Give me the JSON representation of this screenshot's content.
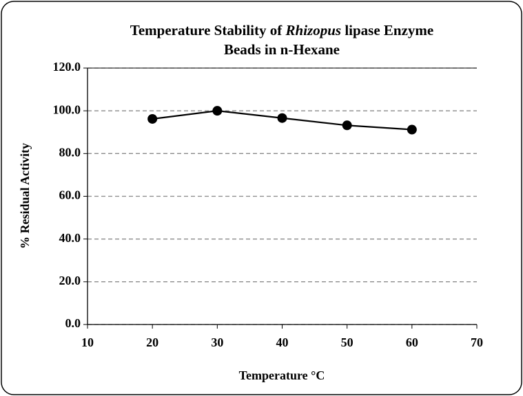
{
  "chart_data": {
    "type": "line",
    "title": [
      "Temperature Stability of ",
      "Rhizopus",
      " lipase Enzyme",
      "Beads in n-Hexane"
    ],
    "x_label": "Temperature °C",
    "y_label": "% Residual Activity",
    "x": [
      20,
      30,
      40,
      50,
      60
    ],
    "series": [
      {
        "color": "#000000",
        "values": [
          96.2,
          100.0,
          96.6,
          93.2,
          91.2
        ]
      }
    ],
    "xlim": [
      10,
      70
    ],
    "xticks": [
      10,
      20,
      30,
      40,
      50,
      60,
      70
    ],
    "ylim": [
      0,
      120
    ],
    "yticks": [
      {
        "value": 0,
        "label": "0.0"
      },
      {
        "value": 20,
        "label": "20.0"
      },
      {
        "value": 40,
        "label": "40.0"
      },
      {
        "value": 60,
        "label": "60.0"
      },
      {
        "value": 80,
        "label": "80.0"
      },
      {
        "value": 100,
        "label": "100.0"
      },
      {
        "value": 120,
        "label": "120.0"
      }
    ],
    "grid": true
  }
}
